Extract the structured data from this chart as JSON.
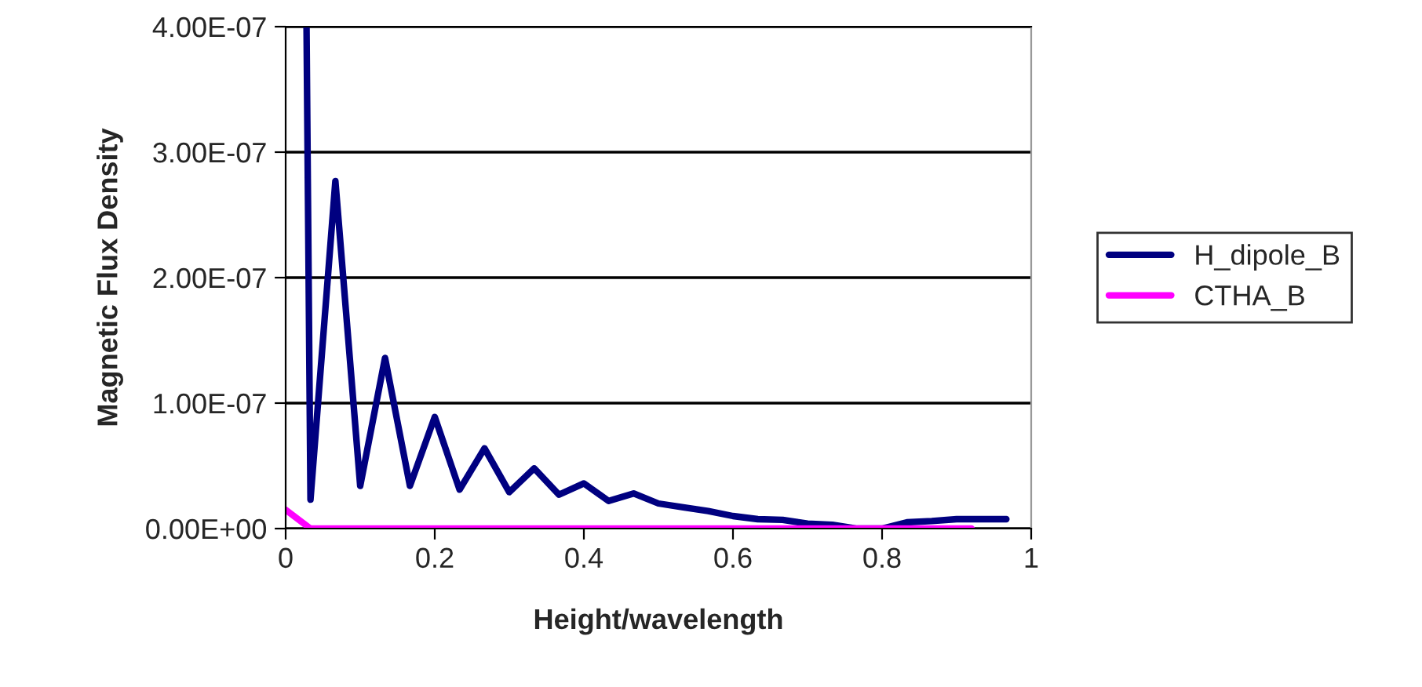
{
  "chart_data": {
    "type": "line",
    "xlabel": "Height/wavelength",
    "ylabel": "Magnetic Flux Density",
    "series": [
      {
        "name": "H_dipole_B",
        "color": "#000080",
        "x": [
          0.028,
          0.0333,
          0.0667,
          0.1,
          0.1333,
          0.1667,
          0.2,
          0.2333,
          0.2667,
          0.3,
          0.3333,
          0.3667,
          0.4,
          0.4333,
          0.4667,
          0.5,
          0.5333,
          0.5667,
          0.6,
          0.6333,
          0.6667,
          0.7,
          0.7333,
          0.7667,
          0.8,
          0.8333,
          0.8667,
          0.9,
          0.9333,
          0.9667
        ],
        "values": [
          4e-07,
          2.3e-08,
          2.77e-07,
          3.4e-08,
          1.36e-07,
          3.4e-08,
          8.9e-08,
          3.1e-08,
          6.4e-08,
          2.9e-08,
          4.8e-08,
          2.7e-08,
          3.6e-08,
          2.2e-08,
          2.8e-08,
          2e-08,
          1.7e-08,
          1.4e-08,
          1e-08,
          7.5e-09,
          7e-09,
          4e-09,
          3e-09,
          0.0,
          0.0,
          5e-09,
          6e-09,
          7.5e-09,
          7.5e-09,
          7.5e-09
        ]
      },
      {
        "name": "CTHA_B",
        "color": "#ff00ff",
        "x": [
          0,
          0.0333,
          0.92
        ],
        "values": [
          1.5e-08,
          0.0,
          0.0
        ]
      }
    ],
    "xlim": [
      0,
      1
    ],
    "xticks": [
      0,
      0.2,
      0.4,
      0.6,
      0.8,
      1
    ],
    "ylim": [
      0,
      4e-07
    ],
    "yticks": [
      {
        "value": 0,
        "label": "0.00E+00"
      },
      {
        "value": 1e-07,
        "label": "1.00E-07"
      },
      {
        "value": 2e-07,
        "label": "2.00E-07"
      },
      {
        "value": 3e-07,
        "label": "3.00E-07"
      },
      {
        "value": 4e-07,
        "label": "4.00E-07"
      }
    ],
    "grid": "y",
    "legend": "right",
    "line_style": "solid",
    "marker": "none"
  }
}
